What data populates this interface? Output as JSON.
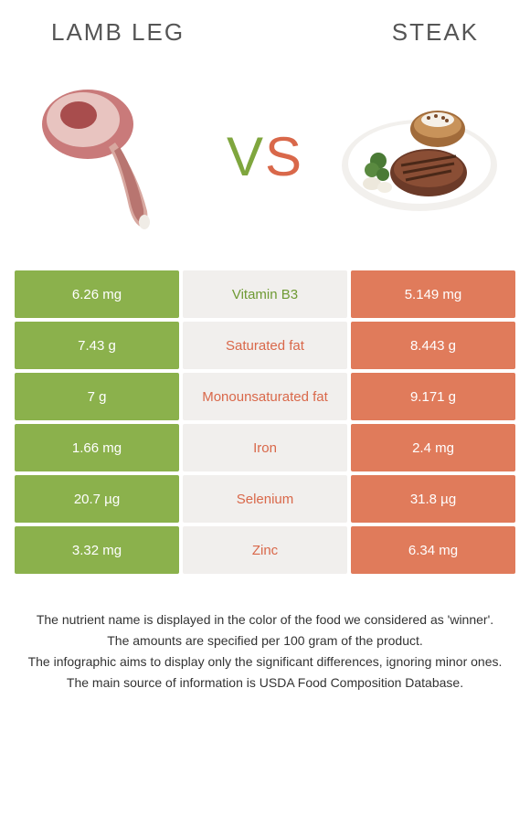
{
  "titles": {
    "left": "LAMB LEG",
    "right": "STEAK"
  },
  "vs": {
    "v": "V",
    "s": "S"
  },
  "colors": {
    "left_cell": "#8bb14c",
    "mid_cell": "#f1efed",
    "right_cell": "#e07b5b",
    "winner_left_text": "#6f9a34",
    "winner_right_text": "#d9684a",
    "background": "#ffffff"
  },
  "rows": [
    {
      "left": "6.26 mg",
      "label": "Vitamin B3",
      "right": "5.149 mg",
      "winner": "left"
    },
    {
      "left": "7.43 g",
      "label": "Saturated fat",
      "right": "8.443 g",
      "winner": "right"
    },
    {
      "left": "7 g",
      "label": "Monounsaturated fat",
      "right": "9.171 g",
      "winner": "right"
    },
    {
      "left": "1.66 mg",
      "label": "Iron",
      "right": "2.4 mg",
      "winner": "right"
    },
    {
      "left": "20.7 µg",
      "label": "Selenium",
      "right": "31.8 µg",
      "winner": "right"
    },
    {
      "left": "3.32 mg",
      "label": "Zinc",
      "right": "6.34 mg",
      "winner": "right"
    }
  ],
  "notes": [
    "The nutrient name is displayed in the color of the food we considered as 'winner'.",
    "The amounts are specified per 100 gram of the product.",
    "The infographic aims to display only the significant differences, ignoring minor ones.",
    "The main source of information is USDA Food Composition Database."
  ],
  "icons": {
    "left": "lamb-leg-icon",
    "right": "steak-plate-icon"
  }
}
